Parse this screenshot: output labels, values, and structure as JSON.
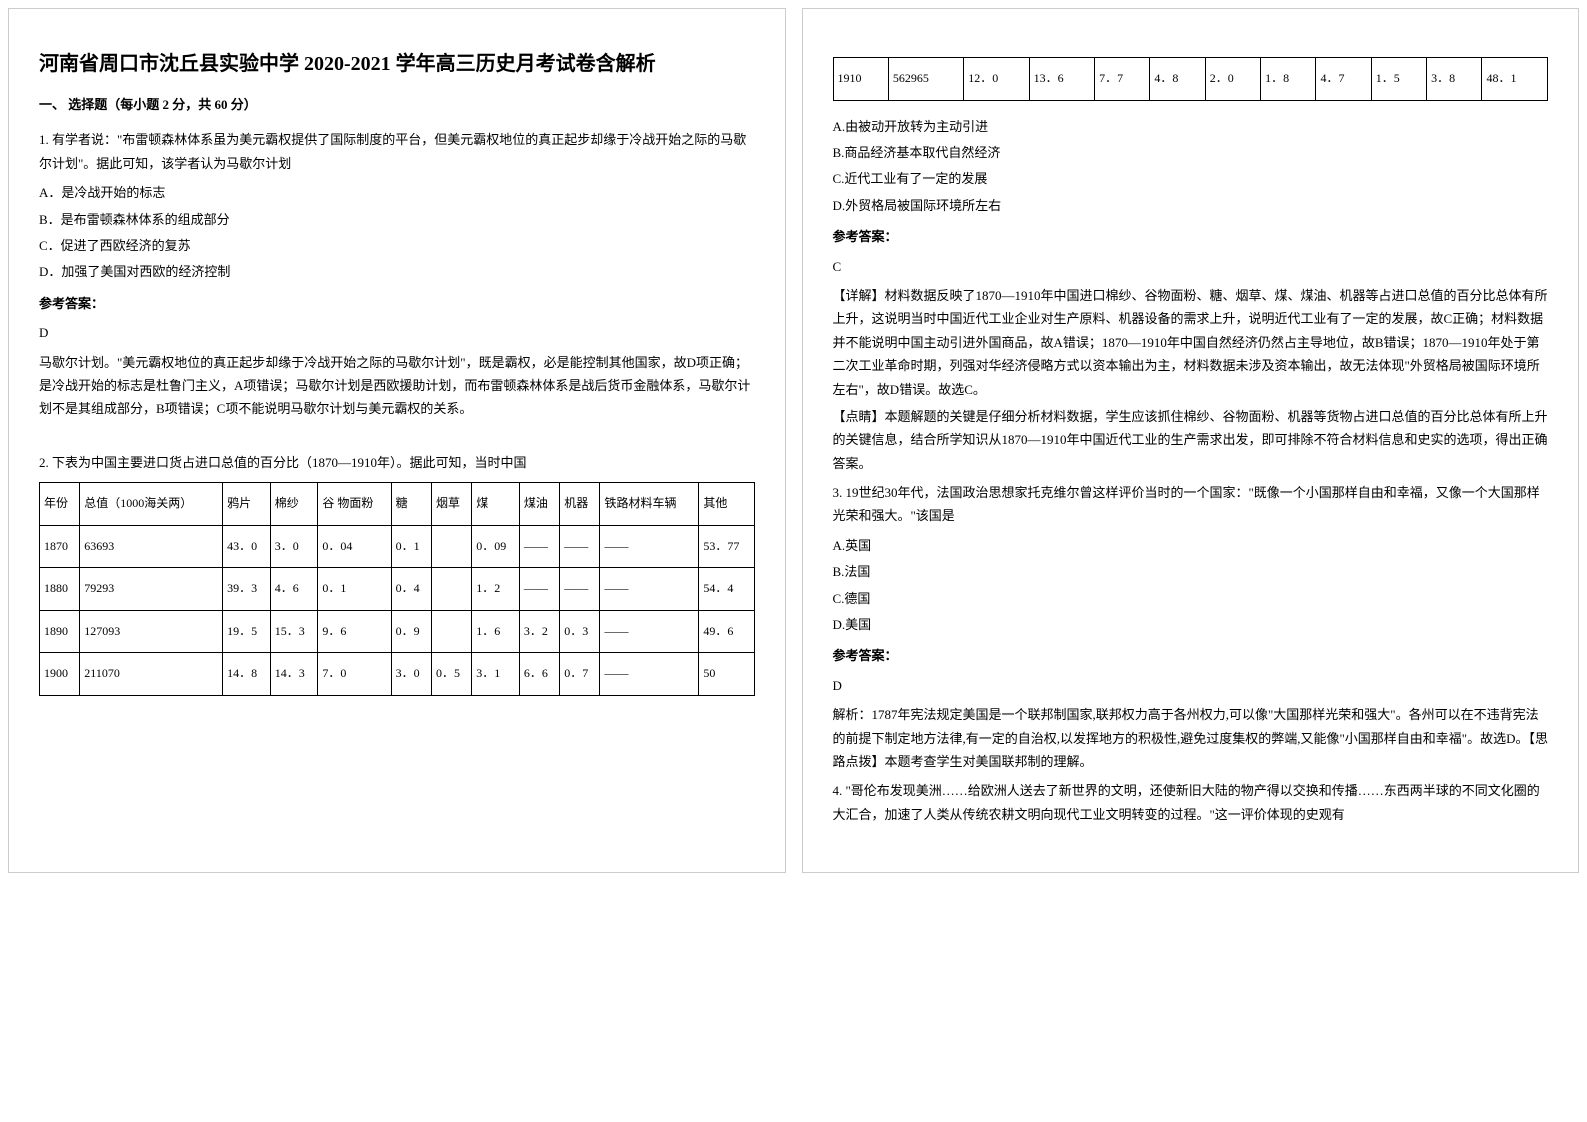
{
  "title": "河南省周口市沈丘县实验中学 2020-2021 学年高三历史月考试卷含解析",
  "section1": "一、 选择题（每小题 2 分，共 60 分）",
  "q1": {
    "num": "1.",
    "text": "有学者说：\"布雷顿森林体系虽为美元霸权提供了国际制度的平台，但美元霸权地位的真正起步却缘于冷战开始之际的马歇尔计划\"。据此可知，该学者认为马歇尔计划",
    "a": "A．是冷战开始的标志",
    "b": "B．是布雷顿森林体系的组成部分",
    "c": "C．促进了西欧经济的复苏",
    "d": "D．加强了美国对西欧的经济控制",
    "ansLabel": "参考答案：",
    "ans": "D",
    "exp": "马歇尔计划。\"美元霸权地位的真正起步却缘于冷战开始之际的马歇尔计划\"，既是霸权，必是能控制其他国家，故D项正确；是冷战开始的标志是杜鲁门主义，A项错误；马歇尔计划是西欧援助计划，而布雷顿森林体系是战后货币金融体系，马歇尔计划不是其组成部分，B项错误；C项不能说明马歇尔计划与美元霸权的关系。"
  },
  "watermark": "",
  "q2": {
    "num": "2.",
    "lead": "下表为中国主要进口货占进口总值的百分比（1870—1910年）。据此可知，当时中国",
    "table1": {
      "headers": [
        "年份",
        "总值（1000海关两）",
        "鸦片",
        "棉纱",
        "谷 物面粉",
        "糖",
        "烟草",
        "煤",
        "煤油",
        "机器",
        "铁路材料车辆",
        "其他"
      ],
      "rows": [
        [
          "1870",
          "63693",
          "43．0",
          "3．0",
          "0．04",
          "0．1",
          "",
          "0．09",
          "——",
          "——",
          "——",
          "53．77"
        ],
        [
          "1880",
          "79293",
          "39．3",
          "4．6",
          "0．1",
          "0．4",
          "",
          "1．2",
          "——",
          "——",
          "——",
          "54．4"
        ],
        [
          "1890",
          "127093",
          "19．5",
          "15．3",
          "9．6",
          "0．9",
          "",
          "1．6",
          "3．2",
          "0．3",
          "——",
          "49．6"
        ],
        [
          "1900",
          "211070",
          "14．8",
          "14．3",
          "7．0",
          "3．0",
          "0．5",
          "3．1",
          "6．6",
          "0．7",
          "——",
          "50"
        ]
      ]
    },
    "table2": {
      "row": [
        "1910",
        "562965",
        "12．0",
        "13．6",
        "7．7",
        "4．8",
        "2．0",
        "1．8",
        "4．7",
        "1．5",
        "3．8",
        "48．1"
      ]
    },
    "a": "A.由被动开放转为主动引进",
    "b": "B.商品经济基本取代自然经济",
    "c": "C.近代工业有了一定的发展",
    "d": "D.外贸格局被国际环境所左右",
    "ansLabel": "参考答案：",
    "ans": "C",
    "exp1": "【详解】材料数据反映了1870—1910年中国进口棉纱、谷物面粉、糖、烟草、煤、煤油、机器等占进口总值的百分比总体有所上升，这说明当时中国近代工业企业对生产原料、机器设备的需求上升，说明近代工业有了一定的发展，故C正确；材料数据并不能说明中国主动引进外国商品，故A错误；1870—1910年中国自然经济仍然占主导地位，故B错误；1870—1910年处于第二次工业革命时期，列强对华经济侵略方式以资本输出为主，材料数据未涉及资本输出，故无法体现\"外贸格局被国际环境所左右\"，故D错误。故选C。",
    "exp2": "【点睛】本题解题的关键是仔细分析材料数据，学生应该抓住棉纱、谷物面粉、机器等货物占进口总值的百分比总体有所上升的关键信息，结合所学知识从1870—1910年中国近代工业的生产需求出发，即可排除不符合材料信息和史实的选项，得出正确答案。"
  },
  "q3": {
    "num": "3.",
    "text": "19世纪30年代，法国政治思想家托克维尔曾这样评价当时的一个国家：\"既像一个小国那样自由和幸福，又像一个大国那样光荣和强大。\"该国是",
    "a": "A.英国",
    "b": "B.法国",
    "c": "C.德国",
    "d": "D.美国",
    "ansLabel": "参考答案：",
    "ans": "D",
    "exp": "解析：1787年宪法规定美国是一个联邦制国家,联邦权力高于各州权力,可以像\"大国那样光荣和强大\"。各州可以在不违背宪法的前提下制定地方法律,有一定的自治权,以发挥地方的积极性,避免过度集权的弊端,又能像\"小国那样自由和幸福\"。故选D。【思路点拨】本题考查学生对美国联邦制的理解。"
  },
  "q4": {
    "num": "4.",
    "text": "\"哥伦布发现美洲……给欧洲人送去了新世界的文明，还使新旧大陆的物产得以交换和传播……东西两半球的不同文化圈的大汇合，加速了人类从传统农耕文明向现代工业文明转变的过程。\"这一评价体现的史观有"
  },
  "styles": {
    "title_fontsize": 20,
    "body_fontsize": 13,
    "table_fontsize": 12,
    "border_color": "#000000",
    "watermark_color": "#d6eaf8",
    "background": "#ffffff",
    "text_color": "#000000"
  }
}
